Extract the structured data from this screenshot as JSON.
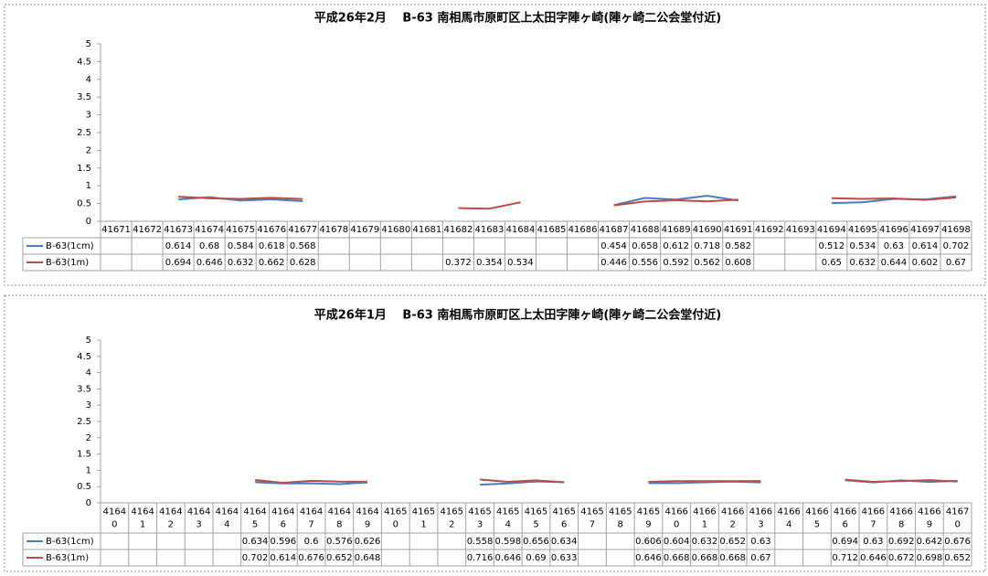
{
  "chart_data": [
    {
      "type": "line",
      "title": "平成26年2月　 B-63 南相馬市原町区上太田字陣ヶ崎(陣ヶ崎二公会堂付近)",
      "categories": [
        "41671",
        "41672",
        "41673",
        "41674",
        "41675",
        "41676",
        "41677",
        "41678",
        "41679",
        "41680",
        "41681",
        "41682",
        "41683",
        "41684",
        "41685",
        "41686",
        "41687",
        "41688",
        "41689",
        "41690",
        "41691",
        "41692",
        "41693",
        "41694",
        "41695",
        "41696",
        "41697",
        "41698"
      ],
      "series": [
        {
          "name": "B-63(1cm)",
          "color": "#4a7ebb",
          "values": [
            null,
            null,
            0.614,
            0.68,
            0.584,
            0.618,
            0.568,
            null,
            null,
            null,
            null,
            null,
            null,
            null,
            null,
            null,
            0.454,
            0.658,
            0.612,
            0.718,
            0.582,
            null,
            null,
            0.512,
            0.534,
            0.63,
            0.614,
            0.702
          ]
        },
        {
          "name": "B-63(1m)",
          "color": "#be4b48",
          "values": [
            null,
            null,
            0.694,
            0.646,
            0.632,
            0.662,
            0.628,
            null,
            null,
            null,
            null,
            0.372,
            0.354,
            0.534,
            null,
            null,
            0.446,
            0.556,
            0.592,
            0.562,
            0.608,
            null,
            null,
            0.65,
            0.632,
            0.644,
            0.602,
            0.67
          ]
        }
      ],
      "ylim": [
        0,
        5
      ],
      "yticks": [
        0,
        0.5,
        1,
        1.5,
        2,
        2.5,
        3,
        3.5,
        4,
        4.5,
        5
      ],
      "grid": false
    },
    {
      "type": "line",
      "title": "平成26年1月　 B-63 南相馬市原町区上太田字陣ヶ崎(陣ヶ崎二公会堂付近)",
      "categories": [
        "41640",
        "41641",
        "41642",
        "41643",
        "41644",
        "41645",
        "41646",
        "41647",
        "41648",
        "41649",
        "41650",
        "41651",
        "41652",
        "41653",
        "41654",
        "41655",
        "41656",
        "41657",
        "41658",
        "41659",
        "41660",
        "41661",
        "41662",
        "41663",
        "41664",
        "41665",
        "41666",
        "41667",
        "41668",
        "41669",
        "41670"
      ],
      "series": [
        {
          "name": "B-63(1cm)",
          "color": "#4a7ebb",
          "values": [
            null,
            null,
            null,
            null,
            null,
            0.634,
            0.596,
            0.6,
            0.576,
            0.626,
            null,
            null,
            null,
            0.558,
            0.598,
            0.656,
            0.634,
            null,
            null,
            0.606,
            0.604,
            0.632,
            0.652,
            0.63,
            null,
            null,
            0.694,
            0.63,
            0.692,
            0.642,
            0.676
          ]
        },
        {
          "name": "B-63(1m)",
          "color": "#be4b48",
          "values": [
            null,
            null,
            null,
            null,
            null,
            0.702,
            0.614,
            0.676,
            0.652,
            0.648,
            null,
            null,
            null,
            0.716,
            0.646,
            0.69,
            0.633,
            null,
            null,
            0.646,
            0.668,
            0.668,
            0.668,
            0.67,
            null,
            null,
            0.712,
            0.646,
            0.672,
            0.698,
            0.652
          ]
        }
      ],
      "ylim": [
        0,
        5
      ],
      "yticks": [
        0,
        0.5,
        1,
        1.5,
        2,
        2.5,
        3,
        3.5,
        4,
        4.5,
        5
      ],
      "grid": false
    }
  ]
}
